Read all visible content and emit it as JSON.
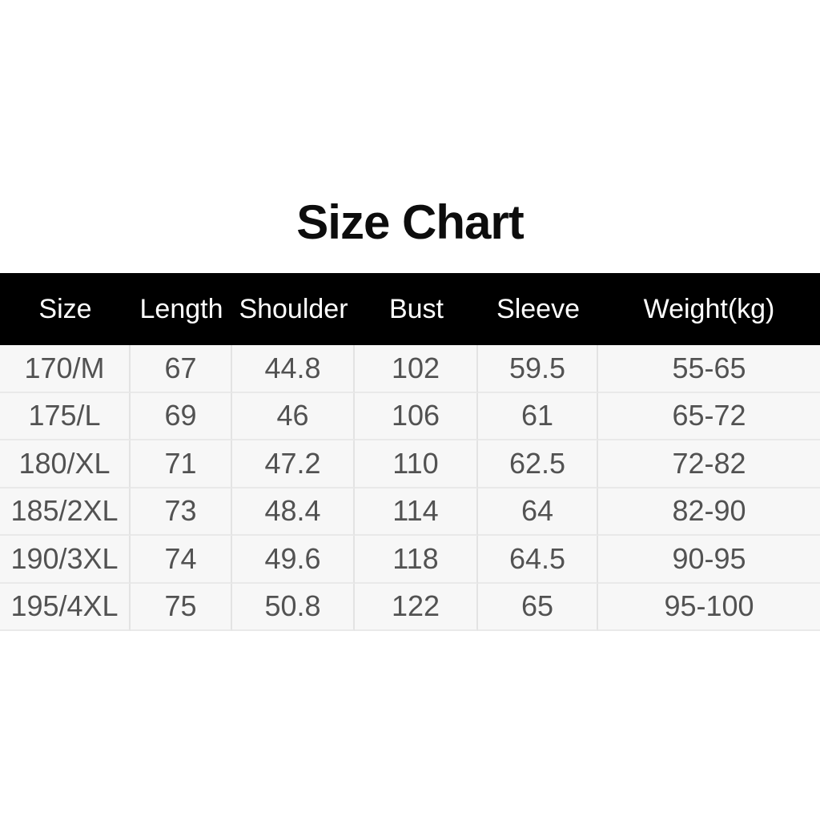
{
  "title": "Size Chart",
  "colors": {
    "page_bg": "#ffffff",
    "header_bg": "#000000",
    "header_text": "#ffffff",
    "row_bg": "#f7f7f7",
    "divider": "#e3e3e3",
    "data_text": "#525252",
    "title_text": "#0d0d0d"
  },
  "chart_data": {
    "type": "table",
    "title": "Size Chart",
    "columns": [
      "Size",
      "Length",
      "Shoulder",
      "Bust",
      "Sleeve",
      "Weight(kg)"
    ],
    "rows": [
      [
        "170/M",
        "67",
        "44.8",
        "102",
        "59.5",
        "55-65"
      ],
      [
        "175/L",
        "69",
        "46",
        "106",
        "61",
        "65-72"
      ],
      [
        "180/XL",
        "71",
        "47.2",
        "110",
        "62.5",
        "72-82"
      ],
      [
        "185/2XL",
        "73",
        "48.4",
        "114",
        "64",
        "82-90"
      ],
      [
        "190/3XL",
        "74",
        "49.6",
        "118",
        "64.5",
        "90-95"
      ],
      [
        "195/4XL",
        "75",
        "50.8",
        "122",
        "65",
        "95-100"
      ]
    ]
  }
}
